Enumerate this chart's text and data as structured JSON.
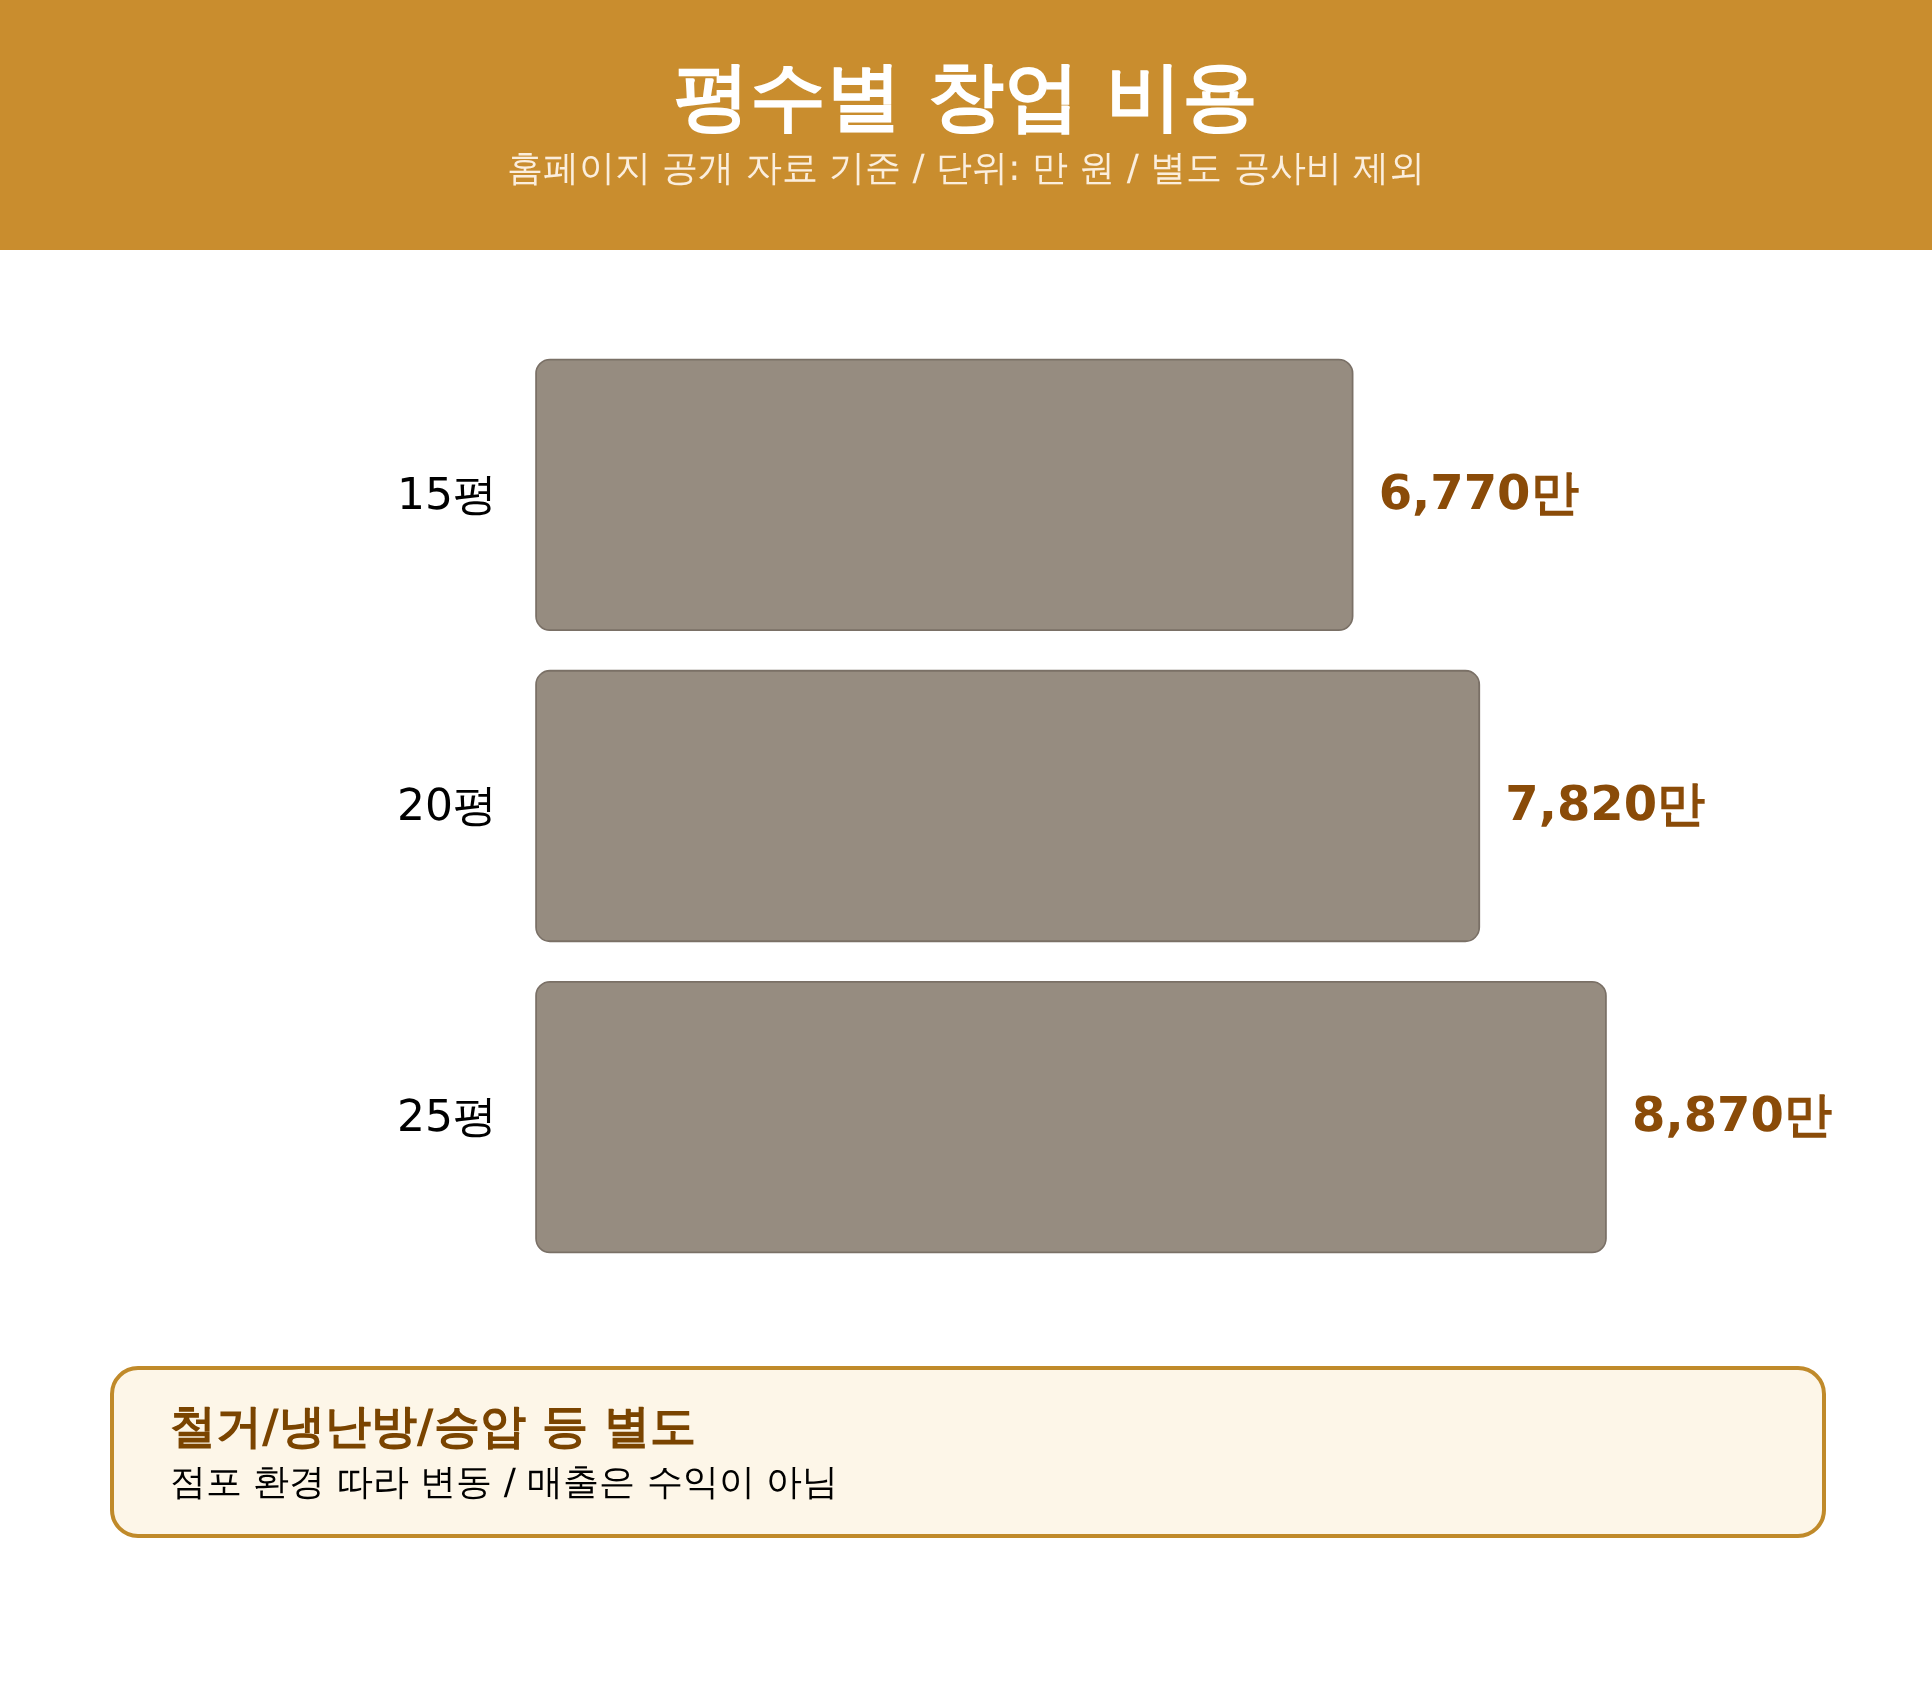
{
  "chart_data": {
    "type": "bar",
    "orientation": "horizontal",
    "title": "평수별 창업 비용",
    "subtitle": "홈페이지 공개 자료 기준 / 단위: 만 원 / 별도 공사비 제외",
    "categories": [
      "15평",
      "20평",
      "25평"
    ],
    "values": [
      6770,
      7820,
      8870
    ],
    "value_labels": [
      "6,770만",
      "7,820만",
      "8,870만"
    ],
    "color": "#968c80",
    "annotations": [
      "철거/냉난방/승압 등 별도",
      "점포 환경 따라 변동 / 매출은 수익이 아님"
    ]
  }
}
